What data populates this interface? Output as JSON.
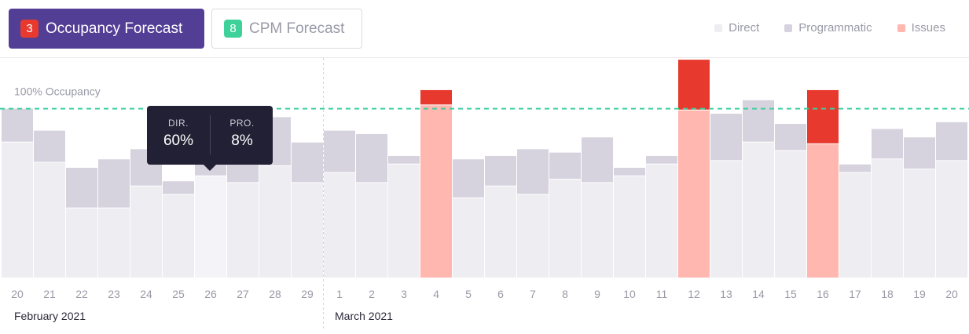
{
  "tabs": [
    {
      "badge": "3",
      "label": "Occupancy Forecast",
      "active": true,
      "badge_color": "#e8392e"
    },
    {
      "badge": "8",
      "label": "CPM Forecast",
      "active": false,
      "badge_color": "#3ed29a"
    }
  ],
  "legend": [
    {
      "label": "Direct",
      "color": "#ededf2"
    },
    {
      "label": "Programmatic",
      "color": "#d6d3de"
    },
    {
      "label": "Issues",
      "color": "#ffb7b0"
    }
  ],
  "tooltip": {
    "dir_label": "DIR.",
    "dir_value": "60%",
    "pro_label": "PRO.",
    "pro_value": "8%"
  },
  "chart_data": {
    "type": "bar",
    "stacked": true,
    "categories": [
      "20",
      "21",
      "22",
      "23",
      "24",
      "25",
      "26",
      "27",
      "28",
      "29",
      "1",
      "2",
      "3",
      "4",
      "5",
      "6",
      "7",
      "8",
      "9",
      "10",
      "11",
      "12",
      "13",
      "14",
      "15",
      "16",
      "17",
      "18",
      "19",
      "20"
    ],
    "groups": [
      {
        "label": "February 2021",
        "start": 0,
        "count": 10
      },
      {
        "label": "March 2021",
        "start": 10,
        "count": 20
      }
    ],
    "reference_line": {
      "label": "100% Occupancy",
      "value": 100,
      "color": "#3dcfa0"
    },
    "ylim": [
      0,
      130
    ],
    "series": [
      {
        "key": "direct",
        "name": "Direct",
        "values": [
          80,
          68,
          41,
          41,
          54,
          49,
          60,
          56,
          66,
          56,
          62,
          56,
          67,
          102,
          47,
          54,
          49,
          58,
          56,
          60,
          67,
          99,
          69,
          80,
          75,
          79,
          62,
          70,
          64,
          69
        ]
      },
      {
        "key": "programmatic",
        "name": "Programmatic",
        "values": [
          20,
          19,
          24,
          29,
          22,
          8,
          8,
          38,
          29,
          24,
          25,
          29,
          5,
          0,
          23,
          18,
          27,
          16,
          27,
          5,
          5,
          0,
          28,
          25,
          16,
          0,
          5,
          18,
          19,
          23
        ]
      },
      {
        "key": "issues",
        "name": "Issues",
        "values": [
          0,
          0,
          0,
          0,
          0,
          0,
          0,
          0,
          0,
          0,
          0,
          0,
          0,
          9,
          0,
          0,
          0,
          0,
          0,
          0,
          0,
          30,
          0,
          0,
          0,
          32,
          0,
          0,
          0,
          0
        ]
      }
    ],
    "colors": {
      "direct": "#ededf2",
      "programmatic": "#d6d3de",
      "issues_base": "#ffb7b0",
      "issues_top": "#e8392e"
    },
    "issue_categories": [
      13,
      21,
      25
    ],
    "highlighted_index": 6
  }
}
